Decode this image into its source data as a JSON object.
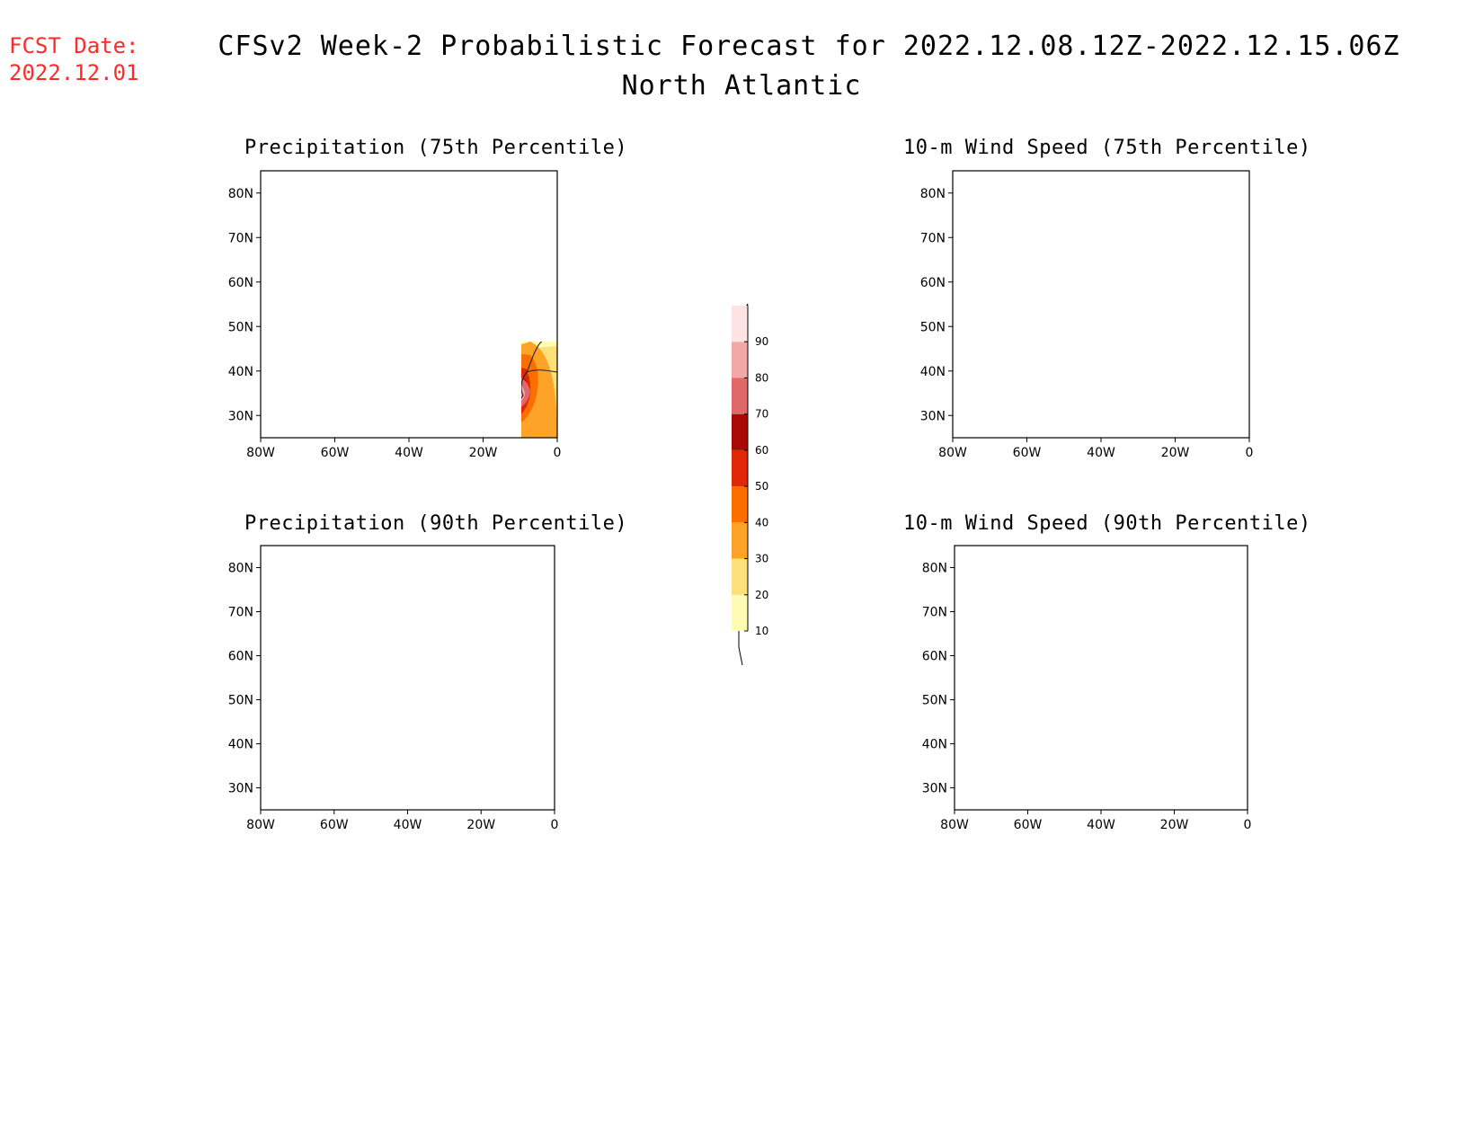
{
  "header": {
    "fcst_label": "FCST Date:",
    "fcst_date": "2022.12.01",
    "title": "CFSv2 Week-2 Probabilistic Forecast for 2022.12.08.12Z-2022.12.15.06Z",
    "subtitle": "North Atlantic"
  },
  "axes": {
    "lat_labels": [
      "80N",
      "70N",
      "60N",
      "50N",
      "40N",
      "30N"
    ],
    "lon_labels": [
      "80W",
      "60W",
      "40W",
      "20W",
      "0"
    ]
  },
  "panels": [
    {
      "id": "precip-75",
      "title": "Precipitation (75th Percentile)"
    },
    {
      "id": "wind-75",
      "title": "10-m Wind Speed (75th Percentile)"
    },
    {
      "id": "precip-90",
      "title": "Precipitation (90th Percentile)"
    },
    {
      "id": "wind-90",
      "title": "10-m Wind Speed (90th Percentile)"
    }
  ],
  "colorbar": {
    "levels": [
      "10",
      "20",
      "30",
      "40",
      "50",
      "60",
      "70",
      "80",
      "90"
    ],
    "colors": [
      "#fffbb4",
      "#fde07a",
      "#fda328",
      "#fb6e00",
      "#e02808",
      "#a80a05",
      "#e06868",
      "#f4a7a7",
      "#fde3e3"
    ]
  },
  "colors": {
    "fcst_text": "#ff2a2a",
    "map_background": "#ffffff",
    "coastline": "#222222"
  }
}
